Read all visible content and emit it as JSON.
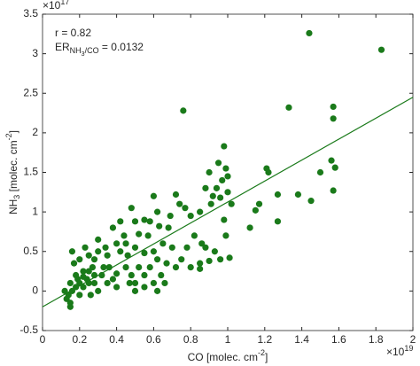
{
  "chart_data": {
    "type": "scatter",
    "xlabel_parts": [
      {
        "text": "CO [molec. cm",
        "style": "normal"
      },
      {
        "text": "-2",
        "style": "sup"
      },
      {
        "text": "]",
        "style": "normal"
      }
    ],
    "ylabel_parts": [
      {
        "text": "NH",
        "style": "normal"
      },
      {
        "text": "3",
        "style": "sub"
      },
      {
        "text": " [molec. cm",
        "style": "normal"
      },
      {
        "text": "-2",
        "style": "sup"
      },
      {
        "text": "]",
        "style": "normal"
      }
    ],
    "x_exponent": {
      "base": "×10",
      "power": "19"
    },
    "y_exponent": {
      "base": "×10",
      "power": "17"
    },
    "annotations": [
      [
        {
          "text": "r = 0.82",
          "style": "normal"
        }
      ],
      [
        {
          "text": "ER",
          "style": "normal"
        },
        {
          "text": "NH",
          "style": "sub"
        },
        {
          "text": "3",
          "style": "subsub"
        },
        {
          "text": "/CO",
          "style": "sub"
        },
        {
          "text": " = 0.0132",
          "style": "normal"
        }
      ]
    ],
    "xlim": [
      0,
      2
    ],
    "xticks": [
      0,
      0.2,
      0.4,
      0.6,
      0.8,
      1,
      1.2,
      1.4,
      1.6,
      1.8,
      2
    ],
    "ylim": [
      -0.5,
      3.5
    ],
    "yticks": [
      -0.5,
      0,
      0.5,
      1,
      1.5,
      2,
      2.5,
      3,
      3.5
    ],
    "grid": false,
    "series": [
      {
        "color": "#1a7a1a",
        "x": [
          0.76,
          1.33,
          1.44,
          1.83,
          1.57,
          1.57,
          1.56,
          1.58,
          1.57,
          1.45,
          1.38,
          1.5,
          1.22,
          1.21,
          1.17,
          1.15,
          1.27,
          1.27,
          1.12,
          0.98,
          0.95,
          0.99,
          1.0,
          0.97,
          0.94,
          0.92,
          0.9,
          0.88,
          1.0,
          0.96,
          1.02,
          0.91,
          0.85,
          0.8,
          0.77,
          0.72,
          0.74,
          0.69,
          0.68,
          0.63,
          0.65,
          0.7,
          0.75,
          0.78,
          0.82,
          0.86,
          0.88,
          0.85,
          0.9,
          0.93,
          0.99,
          0.98,
          0.96,
          1.01,
          0.8,
          0.6,
          0.62,
          0.58,
          0.55,
          0.57,
          0.52,
          0.5,
          0.55,
          0.6,
          0.62,
          0.58,
          0.55,
          0.6,
          0.64,
          0.66,
          0.62,
          0.52,
          0.48,
          0.5,
          0.45,
          0.46,
          0.42,
          0.4,
          0.38,
          0.42,
          0.44,
          0.35,
          0.33,
          0.32,
          0.35,
          0.38,
          0.4,
          0.3,
          0.28,
          0.27,
          0.25,
          0.24,
          0.22,
          0.2,
          0.18,
          0.17,
          0.16,
          0.2,
          0.23,
          0.3,
          0.28,
          0.3,
          0.26,
          0.2,
          0.16,
          0.15,
          0.14,
          0.13,
          0.15,
          0.15,
          0.12,
          0.18,
          0.22,
          0.34,
          0.36,
          0.47,
          0.5,
          0.55,
          0.4,
          0.28,
          0.22,
          0.19,
          0.25,
          0.5,
          0.48,
          0.45,
          0.67,
          0.72,
          0.85,
          0.25
        ],
        "values": [
          2.28,
          2.32,
          3.26,
          3.05,
          2.33,
          2.18,
          1.65,
          1.56,
          1.27,
          1.14,
          1.22,
          1.5,
          1.5,
          1.55,
          1.1,
          1.02,
          1.22,
          0.88,
          0.8,
          1.83,
          1.62,
          1.55,
          1.45,
          1.4,
          1.3,
          1.2,
          1.5,
          1.3,
          1.25,
          1.18,
          1.1,
          1.1,
          1.0,
          0.95,
          1.05,
          1.22,
          1.1,
          0.95,
          0.8,
          0.82,
          0.6,
          0.55,
          0.4,
          0.55,
          0.7,
          0.6,
          0.55,
          0.35,
          0.38,
          0.5,
          0.7,
          0.9,
          0.4,
          0.42,
          0.3,
          1.2,
          1.0,
          0.88,
          0.9,
          0.7,
          0.72,
          0.55,
          0.48,
          0.5,
          0.4,
          0.3,
          0.2,
          0.1,
          0.2,
          0.1,
          0.0,
          0.3,
          0.2,
          0.1,
          0.3,
          0.45,
          0.5,
          0.6,
          0.8,
          0.88,
          0.7,
          0.45,
          0.3,
          0.2,
          0.1,
          0.15,
          0.22,
          0.5,
          0.4,
          0.3,
          0.25,
          0.15,
          0.05,
          0.1,
          0.2,
          0.35,
          0.5,
          0.4,
          0.55,
          0.65,
          0.1,
          0.0,
          -0.05,
          -0.05,
          0.0,
          0.1,
          -0.05,
          -0.1,
          -0.15,
          -0.2,
          0.0,
          0.05,
          0.25,
          0.55,
          0.3,
          0.1,
          0.0,
          0.05,
          0.05,
          0.2,
          0.18,
          0.15,
          0.45,
          0.88,
          1.05,
          0.6,
          0.35,
          0.3,
          0.28,
          0.1
        ]
      }
    ],
    "fit_line": {
      "color": "#1a7a1a",
      "x": [
        0,
        2
      ],
      "y": [
        -0.2,
        2.45
      ]
    }
  }
}
